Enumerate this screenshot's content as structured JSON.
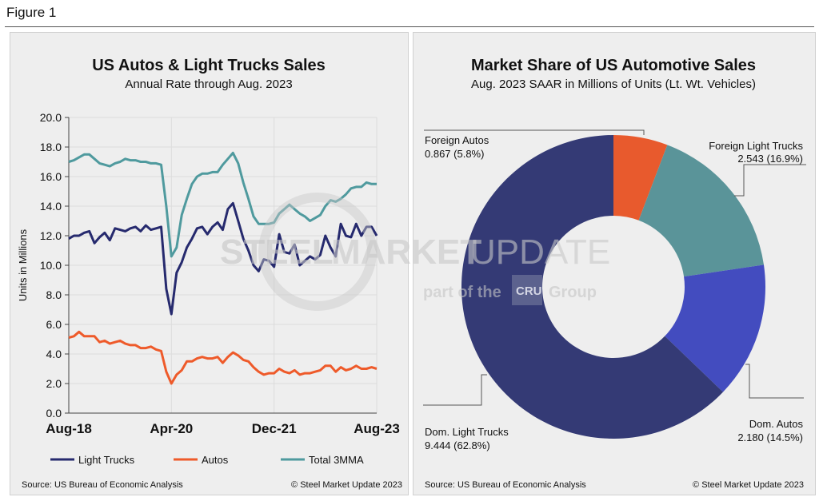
{
  "figure_label": "Figure 1",
  "chart_data": [
    {
      "type": "line",
      "title": "US Autos & Light Trucks Sales",
      "subtitle": "Annual Rate through Aug. 2023",
      "ylabel": "Units in Millions",
      "xlabel": "",
      "ylim": [
        0,
        20
      ],
      "yticks": [
        "0.0",
        "2.0",
        "4.0",
        "6.0",
        "8.0",
        "10.0",
        "12.0",
        "14.0",
        "16.0",
        "18.0",
        "20.0"
      ],
      "xticks": [
        {
          "label": "Aug-18",
          "index": 0
        },
        {
          "label": "Apr-20",
          "index": 20
        },
        {
          "label": "Dec-21",
          "index": 40
        },
        {
          "label": "Aug-23",
          "index": 60
        }
      ],
      "grid": true,
      "legend": "bottom",
      "series": [
        {
          "name": "Light Trucks",
          "color": "#262a6e",
          "values": [
            11.8,
            12.0,
            12.0,
            12.2,
            12.3,
            11.5,
            11.9,
            12.2,
            11.7,
            12.5,
            12.4,
            12.3,
            12.5,
            12.6,
            12.3,
            12.7,
            12.4,
            12.5,
            12.6,
            8.4,
            6.7,
            9.5,
            10.2,
            11.2,
            11.8,
            12.5,
            12.6,
            12.1,
            12.6,
            12.9,
            12.4,
            13.8,
            14.2,
            13.0,
            11.8,
            11.0,
            10.0,
            9.6,
            10.4,
            10.3,
            9.9,
            12.1,
            10.9,
            10.8,
            11.4,
            10.0,
            10.3,
            10.6,
            10.4,
            10.7,
            12.0,
            11.2,
            10.6,
            12.8,
            12.0,
            11.9,
            12.8,
            12.0,
            12.6,
            12.6,
            12.0
          ]
        },
        {
          "name": "Autos",
          "color": "#ee5a2a",
          "values": [
            5.1,
            5.2,
            5.5,
            5.2,
            5.2,
            5.2,
            4.8,
            4.9,
            4.7,
            4.8,
            4.9,
            4.7,
            4.6,
            4.6,
            4.4,
            4.4,
            4.5,
            4.3,
            4.2,
            2.8,
            2.0,
            2.6,
            2.9,
            3.5,
            3.5,
            3.7,
            3.8,
            3.7,
            3.7,
            3.8,
            3.4,
            3.8,
            4.1,
            3.9,
            3.6,
            3.5,
            3.1,
            2.8,
            2.6,
            2.7,
            2.7,
            3.0,
            2.8,
            2.7,
            2.9,
            2.6,
            2.7,
            2.7,
            2.8,
            2.9,
            3.2,
            3.2,
            2.8,
            3.1,
            2.9,
            3.0,
            3.2,
            3.0,
            3.0,
            3.1,
            3.0
          ]
        },
        {
          "name": "Total 3MMA",
          "color": "#4f9a9e",
          "values": [
            17.0,
            17.1,
            17.3,
            17.5,
            17.5,
            17.2,
            16.9,
            16.8,
            16.7,
            16.9,
            17.0,
            17.2,
            17.1,
            17.1,
            17.0,
            17.0,
            16.9,
            16.9,
            16.8,
            14.0,
            10.6,
            11.2,
            13.4,
            14.5,
            15.5,
            16.0,
            16.2,
            16.2,
            16.3,
            16.3,
            16.8,
            17.2,
            17.6,
            16.9,
            15.6,
            14.5,
            13.3,
            12.8,
            12.8,
            12.8,
            12.9,
            13.5,
            13.8,
            14.1,
            13.8,
            13.5,
            13.3,
            13.0,
            13.2,
            13.4,
            14.0,
            14.4,
            14.3,
            14.5,
            14.8,
            15.2,
            15.3,
            15.3,
            15.6,
            15.5,
            15.5
          ]
        }
      ],
      "source": "Source: US Bureau of Economic Analysis",
      "copyright": "© Steel Market Update 2023"
    },
    {
      "type": "pie",
      "title": "Market Share of US Automotive Sales",
      "subtitle": "Aug. 2023 SAAR in Millions of Units (Lt. Wt. Vehicles)",
      "slices": [
        {
          "name": "Foreign Autos",
          "value": 0.867,
          "percent": 5.8,
          "label": "0.867 (5.8%)",
          "color": "#e85a2d"
        },
        {
          "name": "Foreign Light Trucks",
          "value": 2.543,
          "percent": 16.9,
          "label": "2.543 (16.9%)",
          "color": "#5a9499"
        },
        {
          "name": "Dom. Autos",
          "value": 2.18,
          "percent": 14.5,
          "label": "2.180 (14.5%)",
          "color": "#434cbf"
        },
        {
          "name": "Dom. Light Trucks",
          "value": 9.444,
          "percent": 62.8,
          "label": "9.444 (62.8%)",
          "color": "#343a75"
        }
      ],
      "source": "Source: US Bureau of Economic Analysis",
      "copyright": "© Steel Market Update 2023"
    }
  ],
  "watermark": {
    "line1a": "STEEL",
    "line1b": "MARKET",
    "line1c": "UPDATE",
    "line2a": "part of the",
    "logo": "CRU",
    "line2b": "Group"
  }
}
